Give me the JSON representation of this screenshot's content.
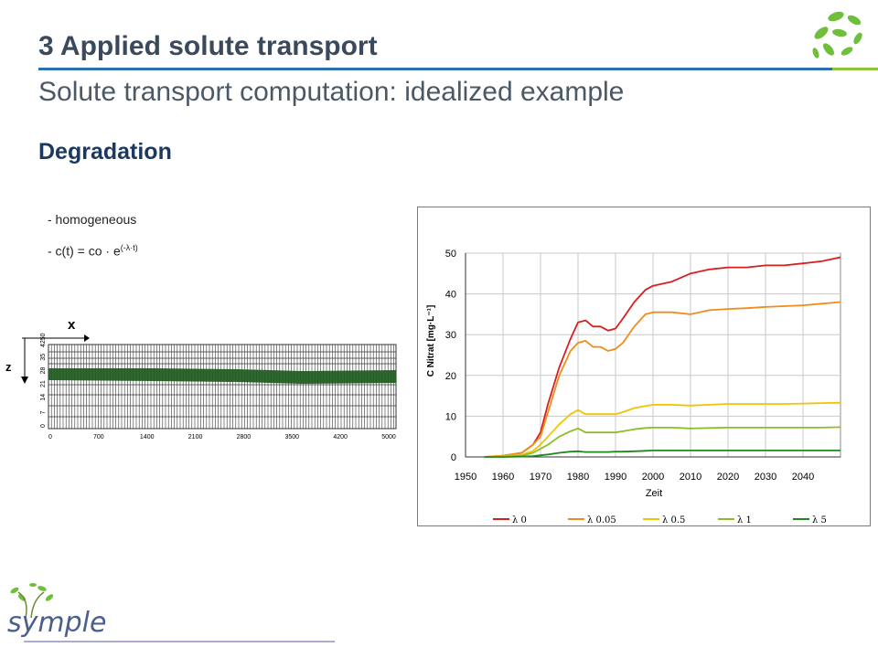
{
  "slide": {
    "title": "3  Applied solute transport",
    "subtitle": "Solute transport computation: idealized example",
    "section": "Degradation",
    "bullet1": "- homogeneous",
    "bullet2_prefix": "-  c(t) = co · e",
    "bullet2_exponent": "(-λ·t)",
    "logo_text": "symple",
    "colors": {
      "title": "#3a4a5c",
      "rule_blue": "#2a6fae",
      "rule_green": "#8cc43c",
      "section": "#1c3a60",
      "grid_dark_band": "#1e5a1e"
    }
  },
  "grid_figure": {
    "x_axis_label": "x",
    "z_axis_label": "z",
    "x_ticks": [
      "0",
      "700",
      "1400",
      "2100",
      "2800",
      "3500",
      "4200",
      "5000"
    ],
    "z_ticks": [
      "0",
      "7",
      "14",
      "21",
      "28",
      "35",
      "4250"
    ]
  },
  "chart_data": {
    "type": "line",
    "xlabel": "Zeit",
    "ylabel": "C Nitrat  [mg·L⁻¹]",
    "xlim": [
      1950,
      2050
    ],
    "ylim": [
      0,
      50
    ],
    "x_ticks": [
      1950,
      1960,
      1970,
      1980,
      1990,
      2000,
      2010,
      2020,
      2030,
      2040
    ],
    "y_ticks": [
      0,
      10,
      20,
      30,
      40,
      50
    ],
    "grid": true,
    "legend_position": "bottom",
    "x": [
      1955,
      1960,
      1965,
      1968,
      1970,
      1972,
      1975,
      1978,
      1980,
      1982,
      1984,
      1986,
      1988,
      1990,
      1992,
      1995,
      1998,
      2000,
      2005,
      2010,
      2015,
      2020,
      2025,
      2030,
      2035,
      2040,
      2045,
      2050
    ],
    "series": [
      {
        "name": "λ 0",
        "color": "#d81e1e",
        "values": [
          0,
          0.3,
          1,
          3,
          6,
          13,
          22,
          29,
          33,
          33.5,
          32,
          32,
          31,
          31.5,
          34,
          38,
          41,
          42,
          43,
          45,
          46,
          46.5,
          46.5,
          47,
          47,
          47.5,
          48,
          49
        ]
      },
      {
        "name": "λ 0.05",
        "color": "#f08c1a",
        "values": [
          0,
          0.3,
          1,
          3,
          5,
          11,
          20,
          26,
          28,
          28.5,
          27,
          27,
          26,
          26.5,
          28,
          32,
          35,
          35.5,
          35.5,
          35,
          36,
          36.3,
          36.5,
          36.8,
          37,
          37.2,
          37.6,
          38
        ]
      },
      {
        "name": "λ 0.5",
        "color": "#f2c400",
        "values": [
          0,
          0.2,
          0.5,
          1.5,
          3,
          5,
          8,
          10.5,
          11.5,
          10.5,
          10.5,
          10.5,
          10.5,
          10.5,
          11,
          12,
          12.5,
          12.8,
          12.8,
          12.6,
          12.8,
          13,
          13,
          13,
          13,
          13.1,
          13.2,
          13.3
        ]
      },
      {
        "name": "λ 1",
        "color": "#8cbf26",
        "values": [
          0,
          0.1,
          0.3,
          1,
          2,
          3,
          5,
          6.3,
          7,
          6,
          6,
          6,
          6,
          6,
          6.3,
          6.8,
          7.1,
          7.2,
          7.2,
          7,
          7.1,
          7.2,
          7.2,
          7.2,
          7.2,
          7.2,
          7.2,
          7.3
        ]
      },
      {
        "name": "λ 5",
        "color": "#1e8a1e",
        "values": [
          0,
          0,
          0.1,
          0.2,
          0.4,
          0.6,
          1,
          1.3,
          1.4,
          1.2,
          1.2,
          1.2,
          1.2,
          1.3,
          1.3,
          1.4,
          1.5,
          1.6,
          1.6,
          1.6,
          1.6,
          1.6,
          1.6,
          1.6,
          1.6,
          1.6,
          1.6,
          1.6
        ]
      }
    ]
  }
}
